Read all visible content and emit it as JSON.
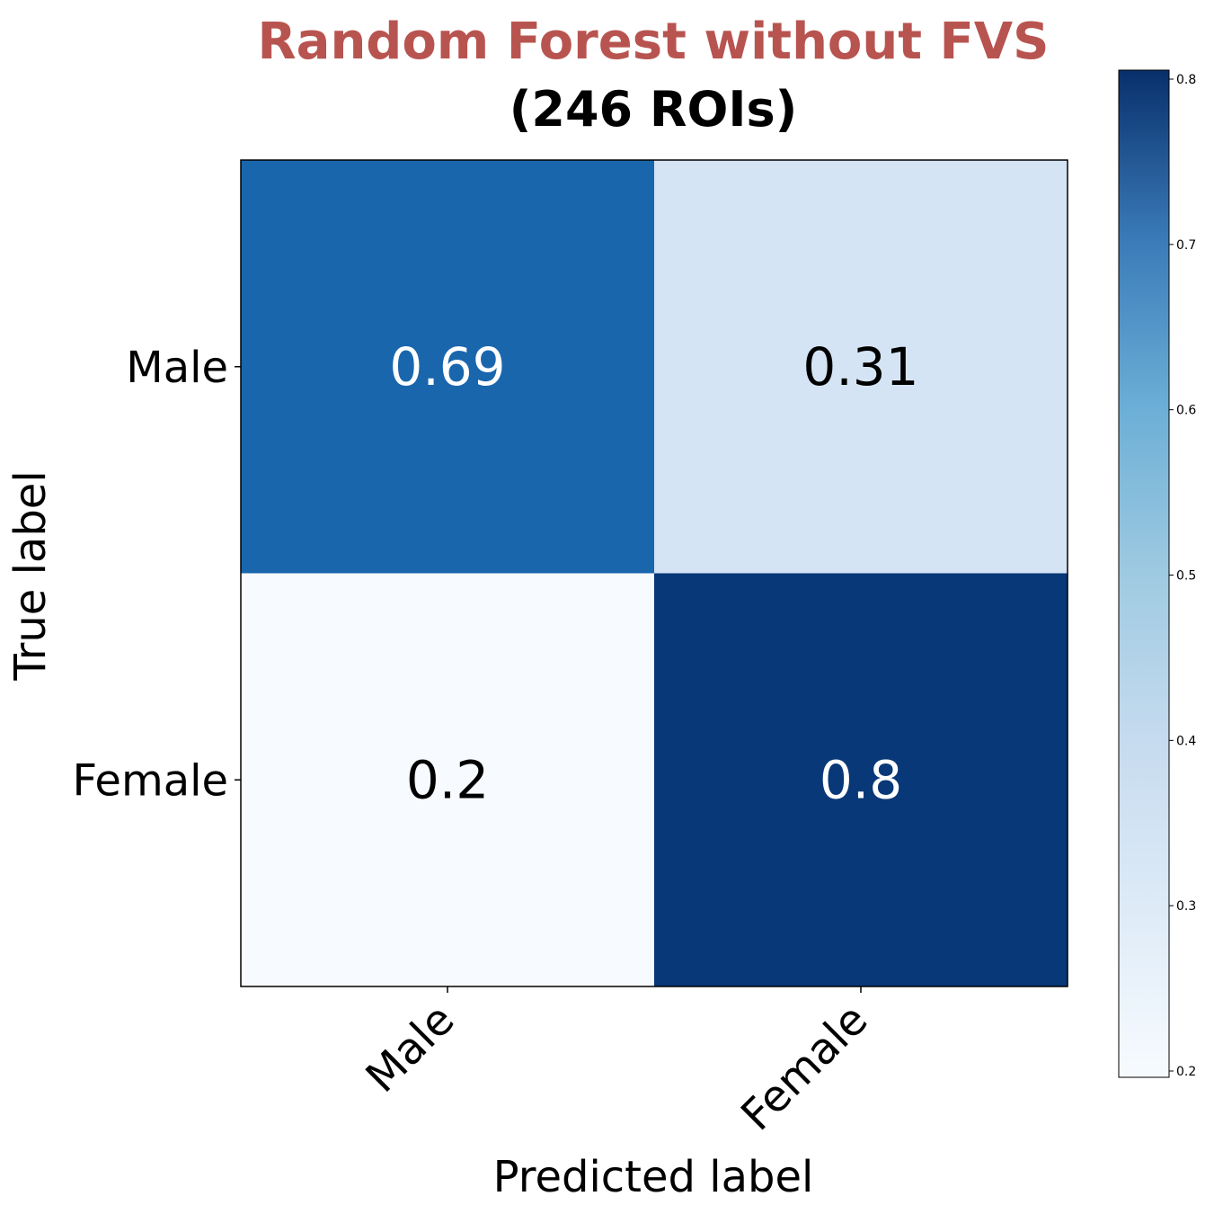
{
  "chart_data": {
    "type": "heatmap",
    "title": "Random Forest without FVS",
    "subtitle": "(246 ROIs)",
    "xlabel": "Predicted label",
    "ylabel": "True label",
    "x_categories": [
      "Male",
      "Female"
    ],
    "y_categories": [
      "Male",
      "Female"
    ],
    "values": [
      [
        0.69,
        0.31
      ],
      [
        0.2,
        0.8
      ]
    ],
    "value_labels": [
      [
        "0.69",
        "0.31"
      ],
      [
        "0.2",
        "0.8"
      ]
    ],
    "colorbar": {
      "range": [
        0.2,
        0.8
      ],
      "ticks": [
        0.2,
        0.3,
        0.4,
        0.5,
        0.6,
        0.7,
        0.8
      ],
      "tick_labels": [
        "0.2",
        "0.3",
        "0.4",
        "0.5",
        "0.6",
        "0.7",
        "0.8"
      ]
    },
    "colormap": "Blues",
    "colors": {
      "title": "#b85450",
      "text_dark": "#000000",
      "text_light": "#ffffff"
    }
  }
}
